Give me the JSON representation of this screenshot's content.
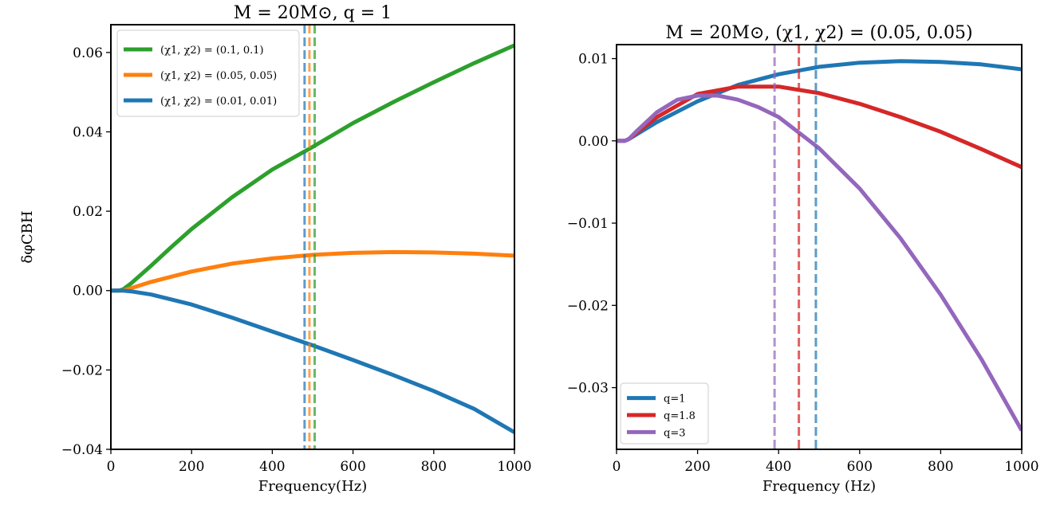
{
  "chart_data": [
    {
      "type": "line",
      "title": "M = 20M⊙, q = 1",
      "xlabel": "Frequency(Hz)",
      "ylabel": "δφCBH",
      "xlim": [
        0,
        1000
      ],
      "ylim": [
        -0.04,
        0.067
      ],
      "xticks": [
        0,
        200,
        400,
        600,
        800,
        1000
      ],
      "xtick_labels": [
        "0",
        "200",
        "400",
        "600",
        "800",
        "1000"
      ],
      "yticks": [
        -0.04,
        -0.02,
        0.0,
        0.02,
        0.04,
        0.06
      ],
      "ytick_labels": [
        "−0.04",
        "−0.02",
        "0.00",
        "0.02",
        "0.04",
        "0.06"
      ],
      "legend_position": "top-left",
      "series": [
        {
          "name": "(χ1, χ2) = (0.1, 0.1)",
          "color": "#2ca02c",
          "x": [
            0,
            20,
            30,
            50,
            100,
            150,
            200,
            300,
            400,
            500,
            600,
            700,
            800,
            900,
            1000
          ],
          "y": [
            0,
            0,
            0.0003,
            0.0018,
            0.0063,
            0.011,
            0.0155,
            0.0235,
            0.0305,
            0.0362,
            0.0422,
            0.0475,
            0.0525,
            0.0573,
            0.0618
          ],
          "cutoff": 505
        },
        {
          "name": "(χ1, χ2) = (0.05, 0.05)",
          "color": "#ff7f0e",
          "x": [
            0,
            30,
            50,
            100,
            200,
            300,
            400,
            500,
            600,
            700,
            800,
            900,
            1000
          ],
          "y": [
            0,
            0,
            0.0006,
            0.0022,
            0.0048,
            0.0068,
            0.0081,
            0.009,
            0.0095,
            0.0097,
            0.0096,
            0.0093,
            0.0088
          ],
          "cutoff": 492
        },
        {
          "name": "(χ1, χ2) = (0.01, 0.01)",
          "color": "#1f77b4",
          "x": [
            0,
            30,
            50,
            100,
            200,
            300,
            400,
            500,
            600,
            700,
            800,
            900,
            1000
          ],
          "y": [
            0,
            0,
            -0.0002,
            -0.001,
            -0.0035,
            -0.0068,
            -0.0103,
            -0.0138,
            -0.0175,
            -0.0213,
            -0.0253,
            -0.0298,
            -0.0357
          ],
          "cutoff": 480
        }
      ]
    },
    {
      "type": "line",
      "title": "M = 20M⊙, (χ1, χ2) = (0.05, 0.05)",
      "xlabel": "Frequency (Hz)",
      "ylabel": "",
      "xlim": [
        0,
        1000
      ],
      "ylim": [
        -0.0375,
        0.0117
      ],
      "xticks": [
        0,
        200,
        400,
        600,
        800,
        1000
      ],
      "xtick_labels": [
        "0",
        "200",
        "400",
        "600",
        "800",
        "1000"
      ],
      "yticks": [
        -0.03,
        -0.02,
        -0.01,
        0.0,
        0.01
      ],
      "ytick_labels": [
        "−0.03",
        "−0.02",
        "−0.01",
        "0.00",
        "0.01"
      ],
      "legend_position": "bottom-left",
      "series": [
        {
          "name": "q=1",
          "color": "#1f77b4",
          "x": [
            0,
            20,
            30,
            50,
            100,
            200,
            300,
            400,
            500,
            600,
            700,
            800,
            900,
            1000
          ],
          "y": [
            0,
            0,
            0.0002,
            0.0008,
            0.0023,
            0.0048,
            0.0068,
            0.0081,
            0.009,
            0.0095,
            0.0097,
            0.0096,
            0.0093,
            0.0087
          ],
          "cutoff": 492
        },
        {
          "name": "q=1.8",
          "color": "#d62728",
          "x": [
            0,
            20,
            30,
            50,
            100,
            200,
            300,
            400,
            500,
            600,
            700,
            800,
            900,
            1000
          ],
          "y": [
            0,
            0,
            0.0002,
            0.001,
            0.0029,
            0.0057,
            0.0066,
            0.0066,
            0.0058,
            0.0045,
            0.0029,
            0.0011,
            -0.001,
            -0.0032
          ],
          "cutoff": 450
        },
        {
          "name": "q=3",
          "color": "#9467bd",
          "x": [
            0,
            20,
            30,
            50,
            100,
            150,
            200,
            250,
            300,
            350,
            400,
            500,
            600,
            700,
            800,
            900,
            1000
          ],
          "y": [
            0,
            0,
            0.0002,
            0.0012,
            0.0035,
            0.005,
            0.0055,
            0.0055,
            0.005,
            0.0041,
            0.0029,
            -0.0009,
            -0.0058,
            -0.0118,
            -0.0187,
            -0.0265,
            -0.0352
          ],
          "cutoff": 390
        }
      ]
    }
  ]
}
